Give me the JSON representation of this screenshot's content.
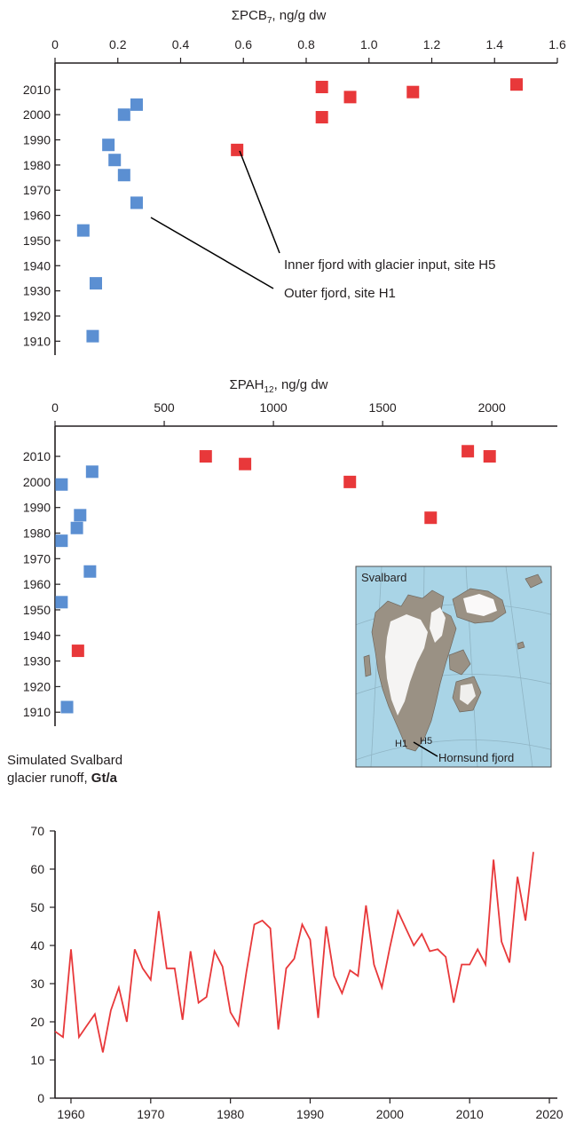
{
  "colors": {
    "outer": "#5b8fd2",
    "inner": "#e8383a",
    "runoff": "#e8383a",
    "axis": "#231f20",
    "map_sea": "#a9d4e6",
    "map_land": "#9a9184",
    "map_ice": "#ffffff",
    "map_label_h1": "#2b4a9b",
    "map_label_h5": "#e8383a"
  },
  "chart_data": [
    {
      "id": "pcb",
      "type": "scatter",
      "title": "ΣPCB",
      "title_sub": "7",
      "title_suffix": ", ng/g dw",
      "xlim": [
        0,
        1.6
      ],
      "xticks": [
        0,
        0.2,
        0.4,
        0.6,
        0.8,
        1.0,
        1.2,
        1.4,
        1.6
      ],
      "xtick_labels": [
        "0",
        "0.2",
        "0.4",
        "0.6",
        "0.8",
        "1.0",
        "1.2",
        "1.4",
        "1.6"
      ],
      "ylim": [
        1908,
        2017
      ],
      "yticks": [
        1910,
        1920,
        1930,
        1940,
        1950,
        1960,
        1970,
        1980,
        1990,
        2000,
        2010
      ],
      "x_axis_position": "top",
      "series": [
        {
          "name": "Outer fjord, site H1",
          "color_key": "outer",
          "points": [
            {
              "x": 0.26,
              "y": 2004
            },
            {
              "x": 0.22,
              "y": 2000
            },
            {
              "x": 0.17,
              "y": 1988
            },
            {
              "x": 0.19,
              "y": 1982
            },
            {
              "x": 0.22,
              "y": 1976
            },
            {
              "x": 0.26,
              "y": 1965
            },
            {
              "x": 0.09,
              "y": 1954
            },
            {
              "x": 0.13,
              "y": 1933
            },
            {
              "x": 0.12,
              "y": 1912
            }
          ]
        },
        {
          "name": "Inner fjord with glacier input, site H5",
          "color_key": "inner",
          "points": [
            {
              "x": 0.85,
              "y": 2011
            },
            {
              "x": 0.94,
              "y": 2007
            },
            {
              "x": 1.14,
              "y": 2009
            },
            {
              "x": 1.47,
              "y": 2012
            },
            {
              "x": 0.85,
              "y": 1999
            },
            {
              "x": 0.58,
              "y": 1986
            }
          ]
        }
      ],
      "annotations": [
        {
          "text": "Inner fjord with glacier input, site H5",
          "target": {
            "x": 0.58,
            "y": 1986
          }
        },
        {
          "text": "Outer fjord, site H1",
          "target": {
            "x": 0.26,
            "y": 1965
          }
        }
      ]
    },
    {
      "id": "pah",
      "type": "scatter",
      "title": "ΣPAH",
      "title_sub": "12",
      "title_suffix": ", ng/g dw",
      "xlim": [
        0,
        2300
      ],
      "xticks": [
        0,
        500,
        1000,
        1500,
        2000
      ],
      "xtick_labels": [
        "0",
        "500",
        "1000",
        "1500",
        "2000"
      ],
      "ylim": [
        1908,
        2018
      ],
      "yticks": [
        1910,
        1920,
        1930,
        1940,
        1950,
        1960,
        1970,
        1980,
        1990,
        2000,
        2010
      ],
      "x_axis_position": "top",
      "series": [
        {
          "name": "Outer fjord, site H1",
          "color_key": "outer",
          "points": [
            {
              "x": 170,
              "y": 2004
            },
            {
              "x": 30,
              "y": 1999
            },
            {
              "x": 115,
              "y": 1987
            },
            {
              "x": 100,
              "y": 1982
            },
            {
              "x": 30,
              "y": 1977
            },
            {
              "x": 160,
              "y": 1965
            },
            {
              "x": 30,
              "y": 1953
            },
            {
              "x": 55,
              "y": 1912
            }
          ]
        },
        {
          "name": "Inner fjord with glacier input, site H5",
          "color_key": "inner",
          "points": [
            {
              "x": 690,
              "y": 2010
            },
            {
              "x": 870,
              "y": 2007
            },
            {
              "x": 1890,
              "y": 2012
            },
            {
              "x": 1990,
              "y": 2010
            },
            {
              "x": 1350,
              "y": 2000
            },
            {
              "x": 1720,
              "y": 1986
            },
            {
              "x": 105,
              "y": 1934
            }
          ]
        }
      ]
    },
    {
      "id": "runoff",
      "type": "line",
      "ylabel_line1": "Simulated Svalbard",
      "ylabel_line2": "glacier runoff, ",
      "ylabel_unit": "Gt/a",
      "xlim": [
        1958,
        2021
      ],
      "ylim": [
        0,
        70
      ],
      "xticks": [
        1960,
        1970,
        1980,
        1990,
        2000,
        2010,
        2020
      ],
      "yticks": [
        0,
        10,
        20,
        30,
        40,
        50,
        60,
        70
      ],
      "x": [
        1958,
        1959,
        1960,
        1961,
        1962,
        1963,
        1964,
        1965,
        1966,
        1967,
        1968,
        1969,
        1970,
        1971,
        1972,
        1973,
        1974,
        1975,
        1976,
        1977,
        1978,
        1979,
        1980,
        1981,
        1982,
        1983,
        1984,
        1985,
        1986,
        1987,
        1988,
        1989,
        1990,
        1991,
        1992,
        1993,
        1994,
        1995,
        1996,
        1997,
        1998,
        1999,
        2000,
        2001,
        2002,
        2003,
        2004,
        2005,
        2006,
        2007,
        2008,
        2009,
        2010,
        2011,
        2012,
        2013,
        2014,
        2015,
        2016,
        2017,
        2018
      ],
      "values": [
        17.5,
        16,
        39,
        16,
        19,
        22,
        12,
        23,
        29,
        20,
        39,
        34,
        31,
        49,
        34,
        34,
        20.5,
        38.5,
        25,
        26.5,
        38.5,
        34.5,
        22.5,
        19,
        33,
        45.5,
        46.5,
        44.5,
        18,
        34,
        36.5,
        45.5,
        41.5,
        21,
        45,
        32,
        27.5,
        33.5,
        32,
        50.5,
        35,
        29,
        39.5,
        49,
        44.5,
        40,
        43,
        38.5,
        39,
        37,
        25,
        35,
        35,
        39,
        35,
        62.5,
        41,
        35.5,
        58,
        46.5,
        64.5
      ]
    }
  ],
  "map": {
    "title": "Svalbard",
    "label_h1": "H1",
    "label_h5": "H5",
    "label_fjord": "Hornsund fjord"
  }
}
